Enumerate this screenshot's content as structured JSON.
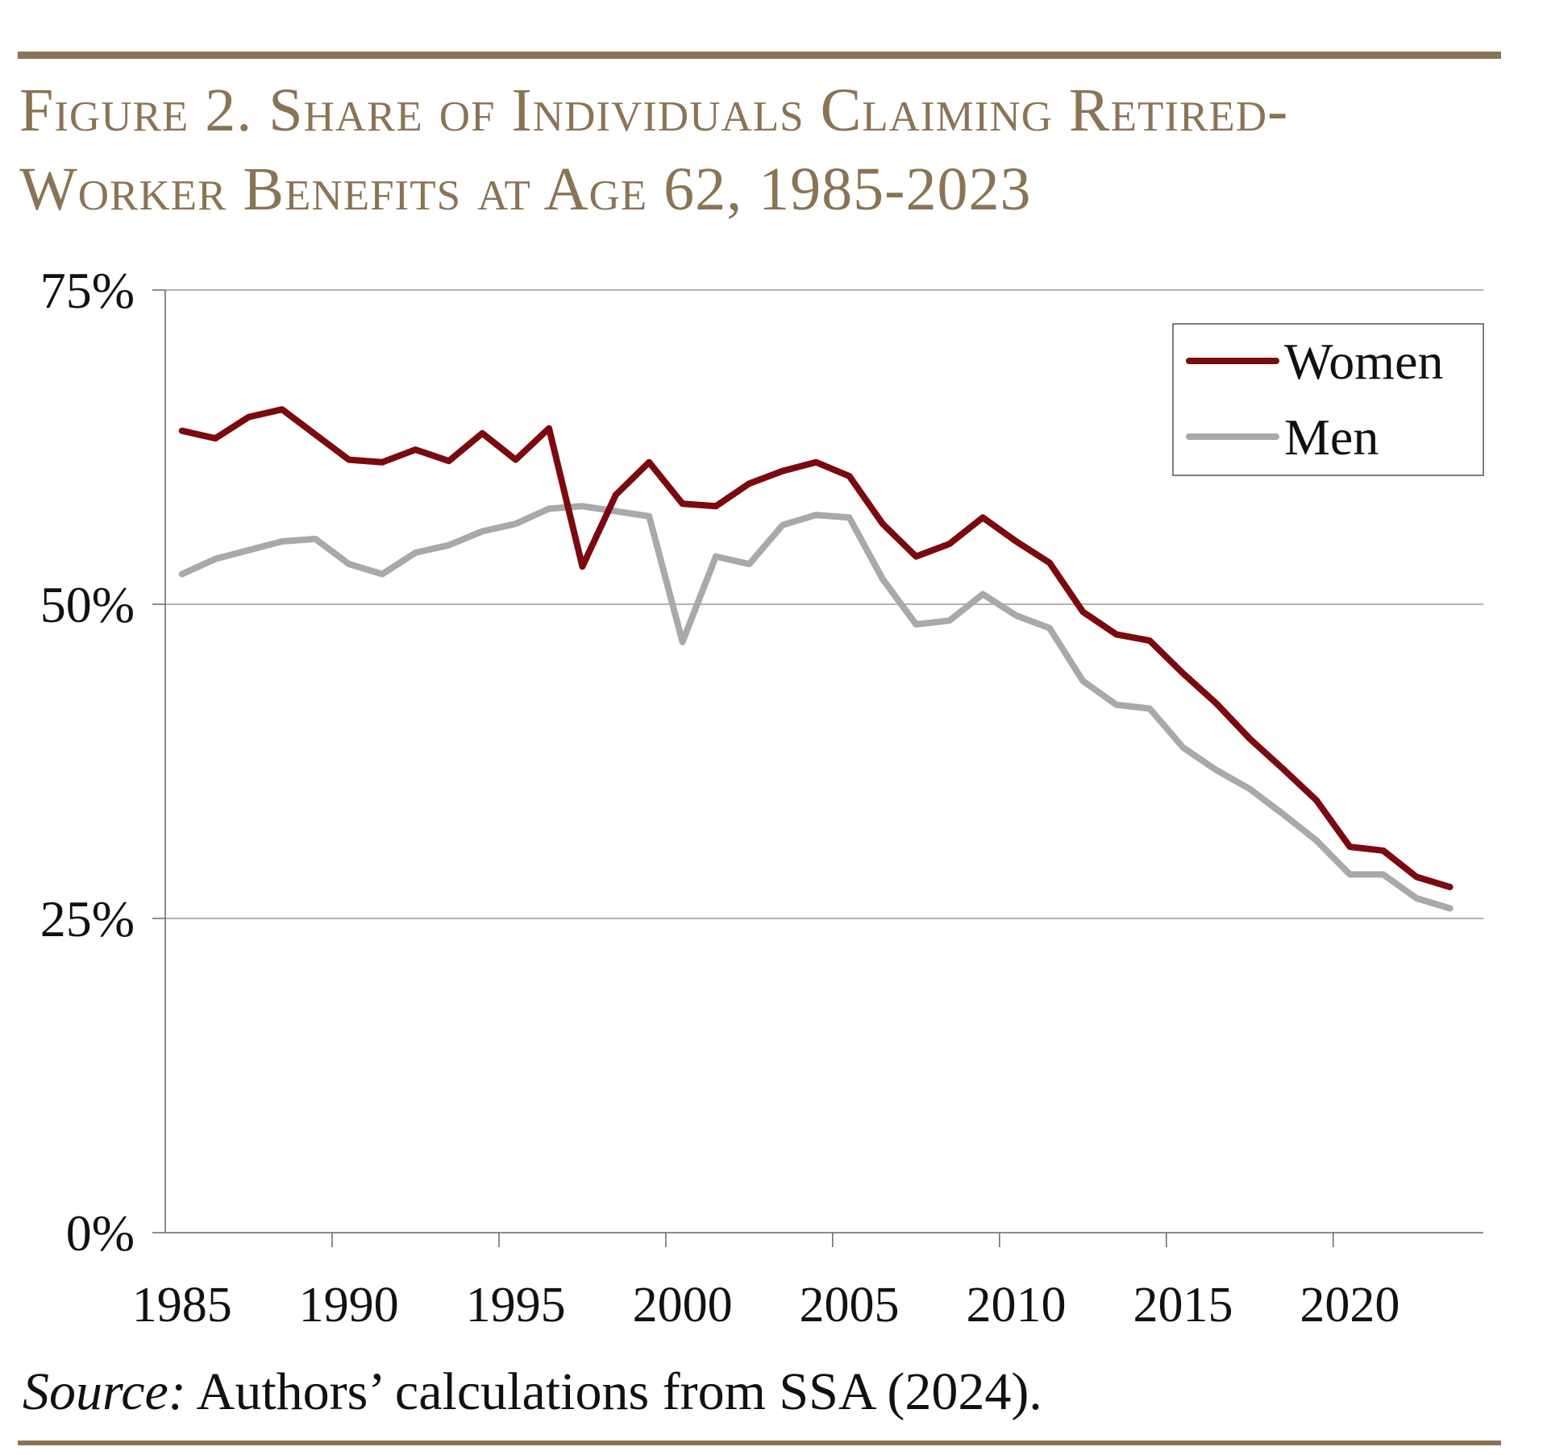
{
  "title_line1": "Figure 2. Share of Individuals Claiming Retired-",
  "title_line2": "Worker Benefits at Age 62, 1985-2023",
  "source_label": "Source:",
  "source_text": "Authors’ calculations from SSA (2024).",
  "colors": {
    "women": "#7b0a0f",
    "men": "#a9a9a9",
    "accent": "#8b7355"
  },
  "chart_data": {
    "type": "line",
    "title": "Share of Individuals Claiming Retired-Worker Benefits at Age 62, 1985-2023",
    "xlabel": "",
    "ylabel": "",
    "ylim": [
      0,
      75
    ],
    "xlim": [
      1984.5,
      2024
    ],
    "y_ticks": [
      0,
      25,
      50,
      75
    ],
    "y_tick_labels": [
      "0%",
      "25%",
      "50%",
      "75%"
    ],
    "x_ticks": [
      1985,
      1990,
      1995,
      2000,
      2005,
      2010,
      2015,
      2020
    ],
    "x_tick_labels": [
      "1985",
      "1990",
      "1995",
      "2000",
      "2005",
      "2010",
      "2015",
      "2020"
    ],
    "grid": "horizontal",
    "legend_position": "top-right",
    "x": [
      1985,
      1986,
      1987,
      1988,
      1989,
      1990,
      1991,
      1992,
      1993,
      1994,
      1995,
      1996,
      1997,
      1998,
      1999,
      2000,
      2001,
      2002,
      2003,
      2004,
      2005,
      2006,
      2007,
      2008,
      2009,
      2010,
      2011,
      2012,
      2013,
      2014,
      2015,
      2016,
      2017,
      2018,
      2019,
      2020,
      2021,
      2022,
      2023
    ],
    "series": [
      {
        "name": "Women",
        "values": [
          63.8,
          63.2,
          64.9,
          65.5,
          63.5,
          61.5,
          61.3,
          62.3,
          61.4,
          63.6,
          61.5,
          64.0,
          53.0,
          58.7,
          61.3,
          58.0,
          57.8,
          59.6,
          60.6,
          61.3,
          60.2,
          56.4,
          53.8,
          54.8,
          56.9,
          55.0,
          53.3,
          49.4,
          47.6,
          47.1,
          44.5,
          42.1,
          39.3,
          36.9,
          34.4,
          30.7,
          30.4,
          28.3,
          27.5
        ]
      },
      {
        "name": "Men",
        "values": [
          52.4,
          53.6,
          54.3,
          55.0,
          55.2,
          53.2,
          52.4,
          54.1,
          54.7,
          55.8,
          56.4,
          57.6,
          57.8,
          57.4,
          57.0,
          47.0,
          53.8,
          53.2,
          56.3,
          57.1,
          56.9,
          52.0,
          48.4,
          48.7,
          50.8,
          49.1,
          48.1,
          43.9,
          42.0,
          41.7,
          38.6,
          36.8,
          35.3,
          33.3,
          31.2,
          28.5,
          28.5,
          26.6,
          25.8
        ]
      }
    ]
  }
}
